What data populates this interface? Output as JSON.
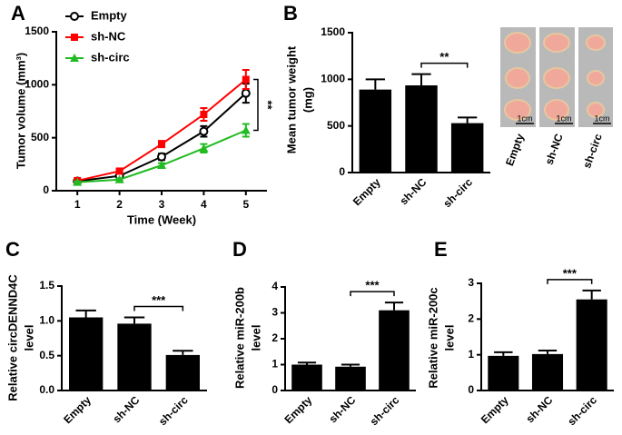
{
  "chart_data": [
    {
      "type": "line",
      "panel_label": "A",
      "ylabel": [
        "Tumor volume (mm³)"
      ],
      "xlabel": "Time (Week)",
      "x": [
        1,
        2,
        3,
        4,
        5
      ],
      "xlim": [
        0.5,
        5.5
      ],
      "xticks": [
        1,
        2,
        3,
        4,
        5
      ],
      "ylim": [
        0,
        1500
      ],
      "yticks": [
        0,
        500,
        1000,
        1500
      ],
      "legend": "top-left",
      "series": [
        {
          "name": "Empty",
          "color": "#000000",
          "marker": "circle-open",
          "values": [
            90,
            140,
            320,
            560,
            920
          ],
          "errors": [
            10,
            15,
            30,
            50,
            90
          ]
        },
        {
          "name": "sh-NC",
          "color": "#ff0000",
          "marker": "square",
          "values": [
            95,
            185,
            440,
            720,
            1050
          ],
          "errors": [
            10,
            15,
            30,
            60,
            90
          ]
        },
        {
          "name": "sh-circ",
          "color": "#22bb22",
          "marker": "triangle",
          "values": [
            80,
            105,
            240,
            400,
            570
          ],
          "errors": [
            8,
            10,
            20,
            40,
            60
          ]
        }
      ],
      "annotations": [
        {
          "text": "**",
          "between": [
            "sh-NC",
            "sh-circ"
          ]
        }
      ]
    },
    {
      "type": "bar",
      "panel_label": "B",
      "ylabel": [
        "Mean tumor weight",
        "(mg)"
      ],
      "color": "#000000",
      "categories": [
        "Empty",
        "sh-NC",
        "sh-circ"
      ],
      "values": [
        890,
        935,
        530
      ],
      "errors": [
        110,
        120,
        60
      ],
      "ylim": [
        0,
        1500
      ],
      "yticks": [
        0,
        500,
        1000,
        1500
      ],
      "annotations": [
        {
          "text": "**",
          "between": [
            "sh-NC",
            "sh-circ"
          ]
        }
      ],
      "photo_labels": [
        "Empty",
        "sh-NC",
        "sh-circ"
      ],
      "scale_labels": [
        "1cm",
        "1cm",
        "1cm"
      ]
    },
    {
      "type": "bar",
      "panel_label": "C",
      "ylabel": [
        "Relative circDENND4C",
        "level"
      ],
      "color": "#000000",
      "categories": [
        "Empty",
        "sh-NC",
        "sh-circ"
      ],
      "values": [
        1.05,
        0.96,
        0.51
      ],
      "errors": [
        0.1,
        0.09,
        0.06
      ],
      "ylim": [
        0,
        1.5
      ],
      "yticks": [
        {
          "value": 0,
          "label": "0.0"
        },
        0.5,
        {
          "value": 1,
          "label": "1.0"
        },
        1.5
      ],
      "annotations": [
        {
          "text": "***",
          "between": [
            "sh-NC",
            "sh-circ"
          ]
        }
      ]
    },
    {
      "type": "bar",
      "panel_label": "D",
      "ylabel": [
        "Relative miR-200b",
        "level"
      ],
      "color": "#000000",
      "categories": [
        "Empty",
        "sh-NC",
        "sh-circ"
      ],
      "values": [
        1.0,
        0.92,
        3.1
      ],
      "errors": [
        0.08,
        0.08,
        0.3
      ],
      "ylim": [
        0,
        4
      ],
      "yticks": [
        0,
        1,
        2,
        3,
        4
      ],
      "annotations": [
        {
          "text": "***",
          "between": [
            "sh-NC",
            "sh-circ"
          ]
        }
      ]
    },
    {
      "type": "bar",
      "panel_label": "E",
      "ylabel": [
        "Relative miR-200c",
        "level"
      ],
      "color": "#000000",
      "categories": [
        "Empty",
        "sh-NC",
        "sh-circ"
      ],
      "values": [
        0.97,
        1.02,
        2.55
      ],
      "errors": [
        0.1,
        0.1,
        0.25
      ],
      "ylim": [
        0,
        3
      ],
      "yticks": [
        0,
        1,
        2,
        3
      ],
      "annotations": [
        {
          "text": "***",
          "between": [
            "sh-NC",
            "sh-circ"
          ]
        }
      ]
    }
  ]
}
